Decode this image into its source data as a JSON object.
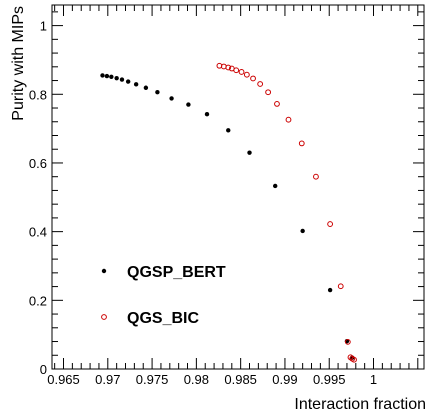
{
  "chart_data": {
    "type": "scatter",
    "xlabel": "Interaction fraction",
    "ylabel": "Purity with MIPs",
    "xlim": [
      0.9637,
      1.0057
    ],
    "ylim": [
      0,
      1.06
    ],
    "x_ticks": [
      {
        "value": 0.965,
        "label": "0.965"
      },
      {
        "value": 0.97,
        "label": "0.97"
      },
      {
        "value": 0.975,
        "label": "0.975"
      },
      {
        "value": 0.98,
        "label": "0.98"
      },
      {
        "value": 0.985,
        "label": "0.985"
      },
      {
        "value": 0.99,
        "label": "0.99"
      },
      {
        "value": 0.995,
        "label": "0.995"
      },
      {
        "value": 1.0,
        "label": "1"
      }
    ],
    "y_ticks": [
      {
        "value": 0,
        "label": "0"
      },
      {
        "value": 0.2,
        "label": "0.2"
      },
      {
        "value": 0.4,
        "label": "0.4"
      },
      {
        "value": 0.6,
        "label": "0.6"
      },
      {
        "value": 0.8,
        "label": "0.8"
      },
      {
        "value": 1,
        "label": "1"
      }
    ],
    "legend_position": "bottom-left",
    "series": [
      {
        "name": "QGSP_BERT",
        "marker": "filled-circle",
        "color": "#000000",
        "x": [
          0.9694,
          0.9699,
          0.9704,
          0.971,
          0.9716,
          0.9723,
          0.9732,
          0.9743,
          0.9756,
          0.9772,
          0.9791,
          0.9812,
          0.9836,
          0.986,
          0.9889,
          0.992,
          0.9951,
          0.997,
          0.9976
        ],
        "y": [
          0.855,
          0.853,
          0.851,
          0.847,
          0.843,
          0.837,
          0.829,
          0.819,
          0.806,
          0.788,
          0.77,
          0.742,
          0.695,
          0.63,
          0.533,
          0.402,
          0.23,
          0.081,
          0.033
        ]
      },
      {
        "name": "QGS_BIC",
        "marker": "open-circle",
        "color": "#cc0000",
        "x": [
          0.9826,
          0.9831,
          0.9836,
          0.984,
          0.9845,
          0.9851,
          0.9857,
          0.9864,
          0.9872,
          0.9881,
          0.9891,
          0.9904,
          0.9919,
          0.9935,
          0.9951,
          0.9963,
          0.9971,
          0.9974,
          0.9976,
          0.9978
        ],
        "y": [
          0.883,
          0.881,
          0.878,
          0.875,
          0.87,
          0.865,
          0.857,
          0.846,
          0.83,
          0.806,
          0.772,
          0.726,
          0.657,
          0.56,
          0.422,
          0.241,
          0.079,
          0.034,
          0.03,
          0.027
        ]
      }
    ]
  }
}
